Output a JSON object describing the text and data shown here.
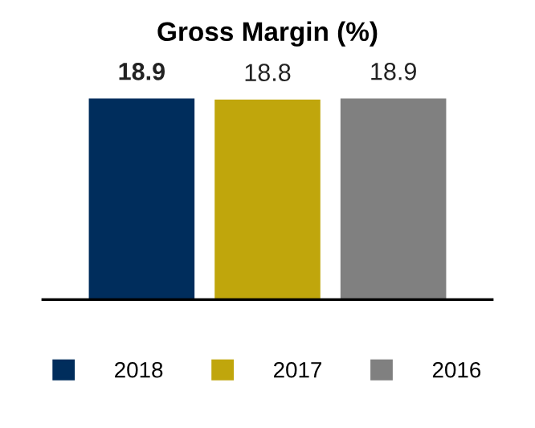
{
  "chart_data": {
    "type": "bar",
    "title": "Gross Margin (%)",
    "categories": [
      null
    ],
    "series": [
      {
        "name": "2018",
        "color": "#002d5c",
        "values": [
          18.9
        ]
      },
      {
        "name": "2017",
        "color": "#c0a60c",
        "values": [
          18.8
        ]
      },
      {
        "name": "2016",
        "color": "#808080",
        "values": [
          18.9
        ]
      }
    ],
    "data_labels": true,
    "legend": "bottom"
  }
}
